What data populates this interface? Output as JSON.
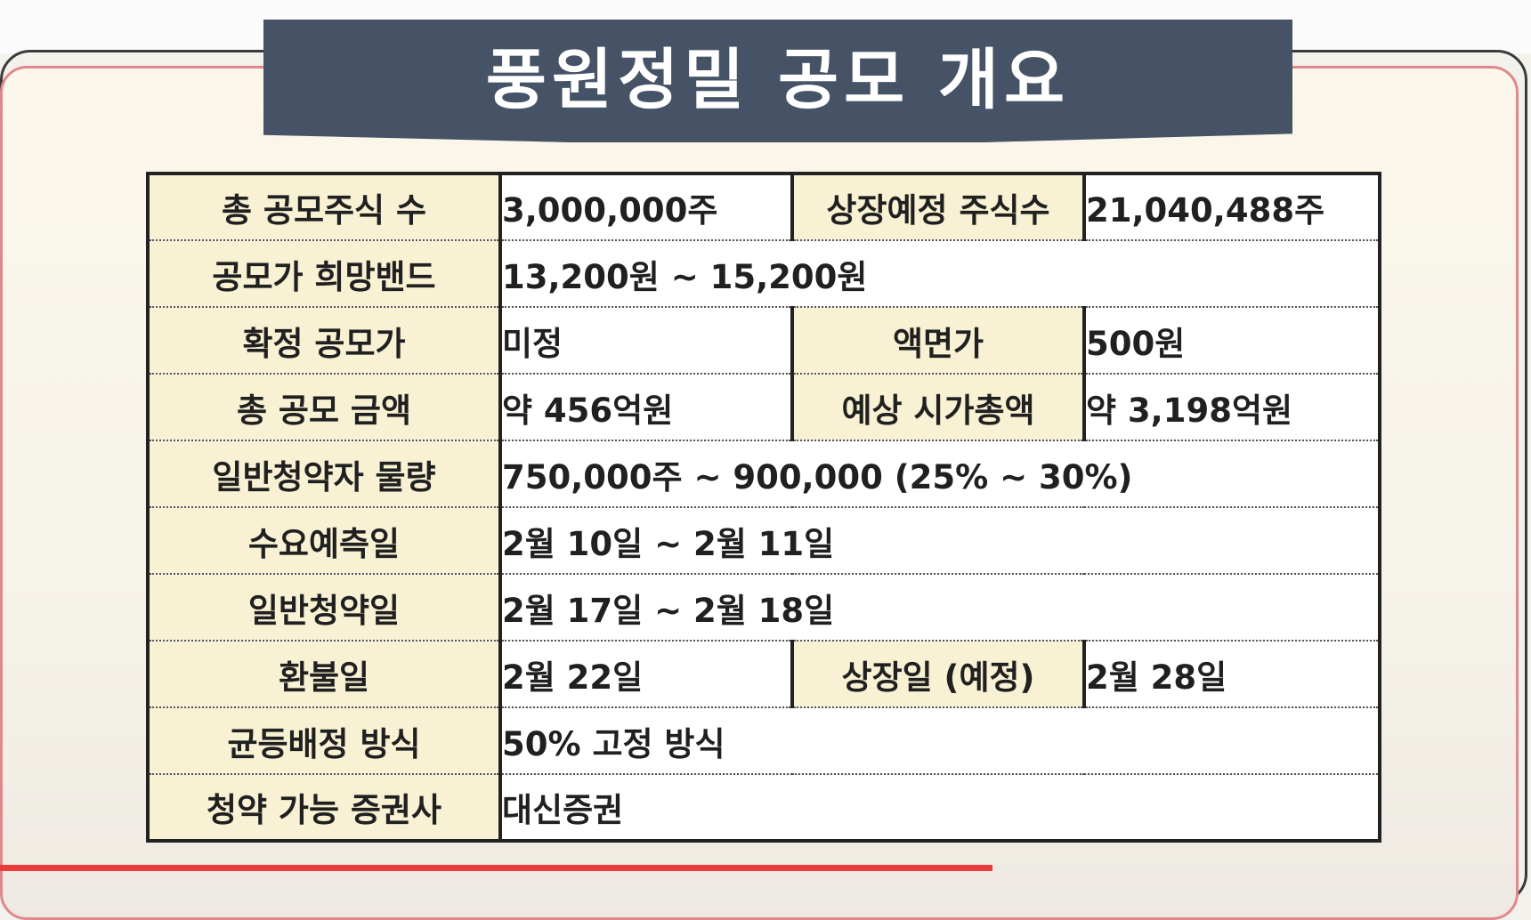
{
  "title": "풍원정밀 공모 개요",
  "rows": [
    {
      "label": "총 공모주식 수",
      "value": "3,000,000주",
      "label2": "상장예정 주식수",
      "value2": "21,040,488주"
    },
    {
      "label": "공모가 희망밴드",
      "value": "13,200원 ~ 15,200원"
    },
    {
      "label": "확정 공모가",
      "value": "미정",
      "label2": "액면가",
      "value2": "500원"
    },
    {
      "label": "총 공모 금액",
      "value": "약 456억원",
      "label2": "예상 시가총액",
      "value2": "약 3,198억원"
    },
    {
      "label": "일반청약자 물량",
      "value": "750,000주 ~ 900,000 (25% ~ 30%)"
    },
    {
      "label": "수요예측일",
      "value": "2월 10일 ~ 2월 11일"
    },
    {
      "label": "일반청약일",
      "value": "2월 17일 ~ 2월 18일"
    },
    {
      "label": "환불일",
      "value": "2월 22일",
      "label2": "상장일 (예정)",
      "value2": "2월 28일"
    },
    {
      "label": "균등배정 방식",
      "value": "50% 고정 방식"
    },
    {
      "label": "청약 가능 증권사",
      "value": "대신증권"
    }
  ],
  "colors": {
    "banner": "#465366",
    "label_bg": "#f8f1d3",
    "highlight_red": "#d6365e",
    "highlight_teal": "#16898a",
    "frame_pink": "#e0888b"
  },
  "video_progress_fraction": 0.65
}
